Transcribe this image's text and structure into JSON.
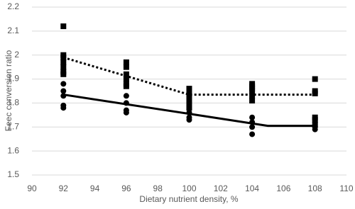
{
  "chart_data": {
    "type": "scatter",
    "xlabel": "Dietary nutrient density, %",
    "ylabel": "Feec conversion ratio",
    "xlim": [
      90,
      110
    ],
    "xticks": [
      90,
      92,
      94,
      96,
      98,
      100,
      102,
      104,
      106,
      108,
      110
    ],
    "ylim": [
      1.5,
      2.2
    ],
    "yticks": [
      1.5,
      1.6,
      1.7,
      1.8,
      1.9,
      2,
      2.1,
      2.2
    ],
    "grid": true,
    "series": [
      {
        "marker": "square",
        "color": "#000000",
        "x": [
          92,
          92,
          92,
          92,
          92,
          92,
          92,
          96,
          96,
          96,
          96,
          96,
          96,
          100,
          100,
          100,
          100,
          100,
          104,
          104,
          104,
          104,
          104,
          104,
          108,
          108,
          108,
          108,
          108,
          108
        ],
        "values": [
          2.12,
          2.0,
          1.99,
          1.97,
          1.95,
          1.93,
          1.92,
          1.97,
          1.95,
          1.92,
          1.9,
          1.88,
          1.87,
          1.86,
          1.84,
          1.82,
          1.8,
          1.78,
          1.88,
          1.87,
          1.86,
          1.85,
          1.83,
          1.81,
          1.9,
          1.85,
          1.84,
          1.74,
          1.73,
          1.71
        ]
      },
      {
        "marker": "circle",
        "color": "#000000",
        "x": [
          92,
          92,
          92,
          92,
          92,
          96,
          96,
          96,
          96,
          100,
          100,
          100,
          104,
          104,
          104,
          104,
          108,
          108
        ],
        "values": [
          1.88,
          1.85,
          1.83,
          1.79,
          1.78,
          1.83,
          1.8,
          1.77,
          1.76,
          1.76,
          1.74,
          1.73,
          1.74,
          1.72,
          1.7,
          1.67,
          1.7,
          1.69
        ]
      }
    ],
    "lines": [
      {
        "style": "dotted",
        "color": "#000000",
        "x": [
          92,
          100,
          108
        ],
        "values": [
          1.99,
          1.835,
          1.835
        ]
      },
      {
        "style": "solid",
        "color": "#000000",
        "x": [
          92,
          100,
          104,
          105,
          108
        ],
        "values": [
          1.835,
          1.755,
          1.715,
          1.705,
          1.705
        ]
      }
    ]
  }
}
